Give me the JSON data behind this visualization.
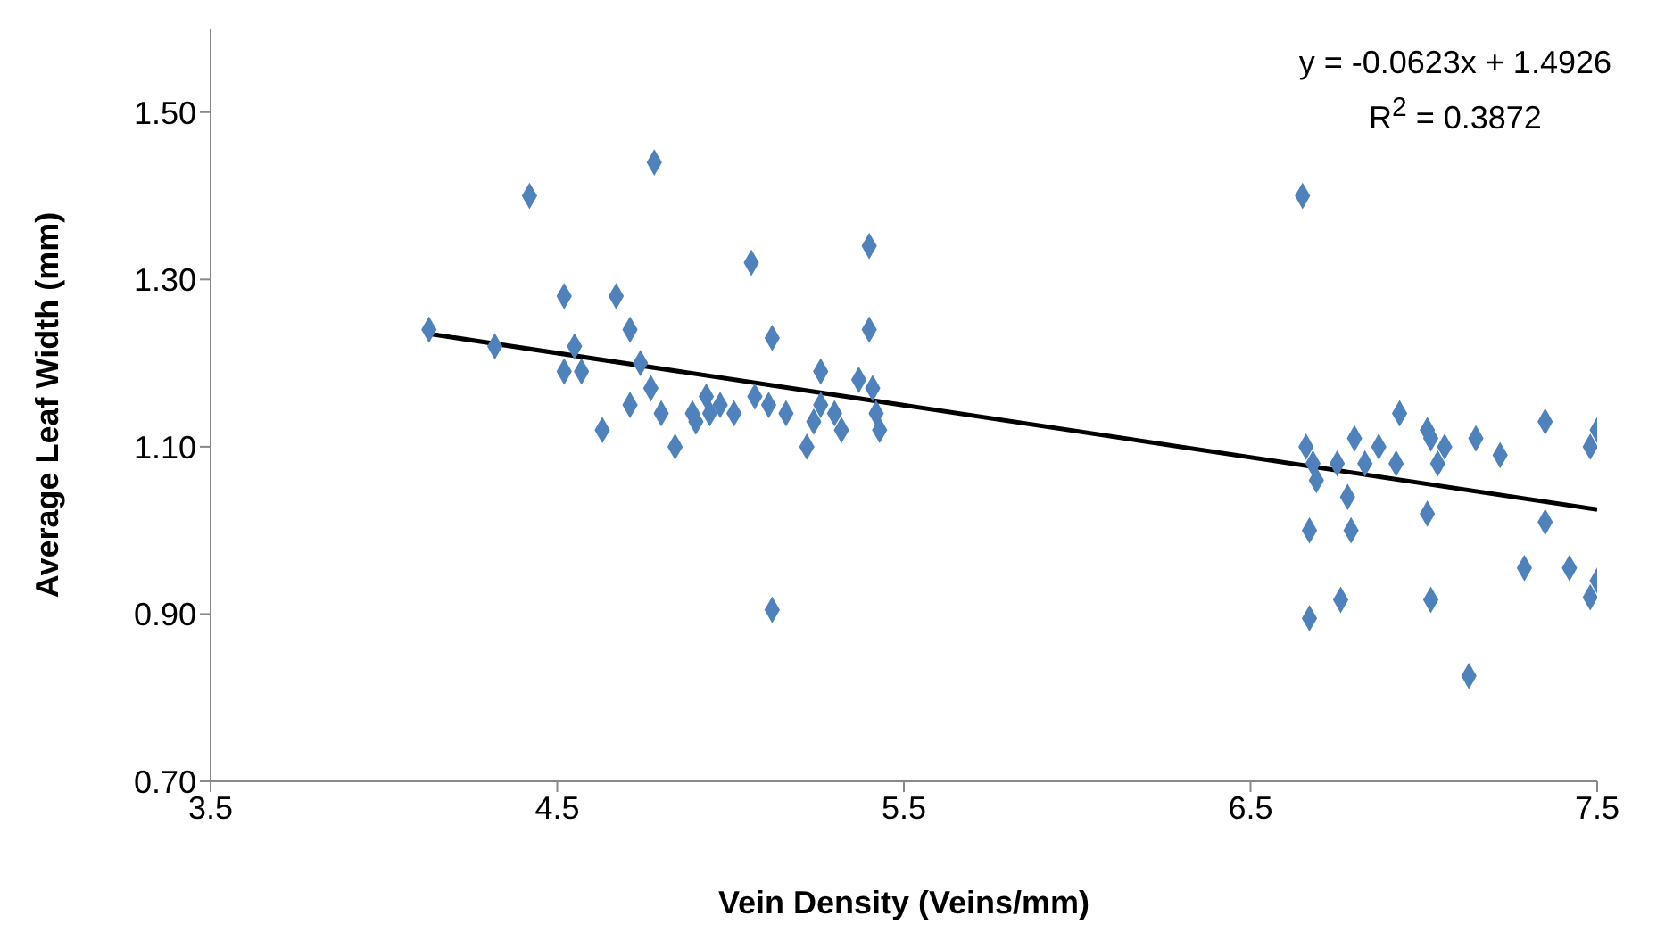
{
  "chart_data": {
    "type": "scatter",
    "xlabel": "Vein Density (Veins/mm)",
    "ylabel": "Average Leaf Width (mm)",
    "xlim": [
      3.5,
      7.5
    ],
    "xticks": [
      3.5,
      4.5,
      5.5,
      6.5,
      7.5
    ],
    "ylim": [
      0.7,
      1.6
    ],
    "yticks": [
      {
        "value": 0.7,
        "label": "0.70"
      },
      {
        "value": 0.9,
        "label": "0.90"
      },
      {
        "value": 1.1,
        "label": "1.10"
      },
      {
        "value": 1.3,
        "label": "1.30"
      },
      {
        "value": 1.5,
        "label": "1.50"
      }
    ],
    "marker": "diamond",
    "annotations": [
      "y = -0.0623x + 1.4926",
      "R$^{2}$ = 0.3872"
    ],
    "series": [
      {
        "color": "#4f81bd",
        "x": [
          4.13,
          4.32,
          4.42,
          4.52,
          4.52,
          4.55,
          4.57,
          4.63,
          4.67,
          4.71,
          4.71,
          4.74,
          4.77,
          4.78,
          4.8,
          4.84,
          4.9,
          4.93,
          4.94,
          4.97,
          5.01,
          5.06,
          5.07,
          5.11,
          5.12,
          5.12,
          5.22,
          5.24,
          5.26,
          5.26,
          5.3,
          5.32,
          5.37,
          5.4,
          5.4,
          5.41,
          5.42,
          5.43,
          4.89,
          5.16,
          6.65,
          6.66,
          6.68,
          6.69,
          6.67,
          6.67,
          6.76,
          6.75,
          6.78,
          6.79,
          6.8,
          6.83,
          6.87,
          6.93,
          6.92,
          7.01,
          7.01,
          7.02,
          7.04,
          7.02,
          7.06,
          7.13,
          7.15,
          7.22,
          7.29,
          7.35,
          7.35,
          7.42,
          7.48,
          7.48,
          7.5,
          7.5
        ],
        "values": [
          1.24,
          1.22,
          1.4,
          1.28,
          1.19,
          1.22,
          1.19,
          1.12,
          1.28,
          1.24,
          1.15,
          1.2,
          1.17,
          1.44,
          1.14,
          1.1,
          1.13,
          1.16,
          1.14,
          1.15,
          1.14,
          1.32,
          1.16,
          1.15,
          1.23,
          0.905,
          1.1,
          1.13,
          1.19,
          1.15,
          1.14,
          1.12,
          1.18,
          1.34,
          1.24,
          1.17,
          1.14,
          1.12,
          1.14,
          1.14,
          1.4,
          1.1,
          1.08,
          1.06,
          1.0,
          0.895,
          0.917,
          1.08,
          1.04,
          1.0,
          1.11,
          1.08,
          1.1,
          1.14,
          1.08,
          1.12,
          1.02,
          1.11,
          1.08,
          0.917,
          1.1,
          0.826,
          1.11,
          1.09,
          0.955,
          1.13,
          1.01,
          0.955,
          0.92,
          1.1,
          1.12,
          0.94
        ]
      },
      {
        "type": "line",
        "color": "#000000",
        "marker": "none",
        "x": [
          4.13,
          7.5
        ],
        "values": [
          1.235,
          1.025
        ]
      }
    ]
  }
}
